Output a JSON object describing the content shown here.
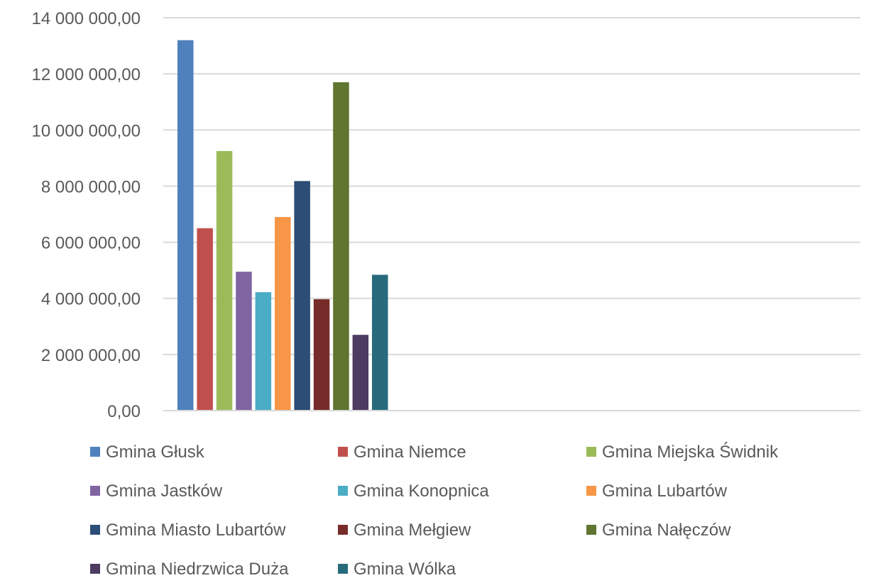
{
  "chart_data": {
    "type": "bar",
    "title": "",
    "xlabel": "",
    "ylabel": "",
    "ylim": [
      0,
      14000000
    ],
    "y_ticks": [
      0,
      2000000,
      4000000,
      6000000,
      8000000,
      10000000,
      12000000,
      14000000
    ],
    "y_tick_labels": [
      "0,00",
      "2 000 000,00",
      "4 000 000,00",
      "6 000 000,00",
      "8 000 000,00",
      "10 000 000,00",
      "12 000 000,00",
      "14 000 000,00"
    ],
    "grid": true,
    "legend_position": "bottom",
    "series": [
      {
        "name": "Gmina Głusk",
        "value": 13200000,
        "color": "#4F81BD"
      },
      {
        "name": "Gmina Niemce",
        "value": 6500000,
        "color": "#C0504D"
      },
      {
        "name": "Gmina Miejska Świdnik",
        "value": 9250000,
        "color": "#9BBB59"
      },
      {
        "name": "Gmina Jastków",
        "value": 4950000,
        "color": "#8064A2"
      },
      {
        "name": "Gmina Konopnica",
        "value": 4220000,
        "color": "#4BACC6"
      },
      {
        "name": "Gmina Lubartów",
        "value": 6900000,
        "color": "#F79646"
      },
      {
        "name": "Gmina Miasto Lubartów",
        "value": 8180000,
        "color": "#2C4D75"
      },
      {
        "name": "Gmina Mełgiew",
        "value": 3970000,
        "color": "#772C2A"
      },
      {
        "name": "Gmina Nałęczów",
        "value": 11700000,
        "color": "#5F7530"
      },
      {
        "name": "Gmina Niedrzwica Duża",
        "value": 2700000,
        "color": "#4D3B62"
      },
      {
        "name": "Gmina Wólka",
        "value": 4840000,
        "color": "#276A7C"
      }
    ]
  }
}
